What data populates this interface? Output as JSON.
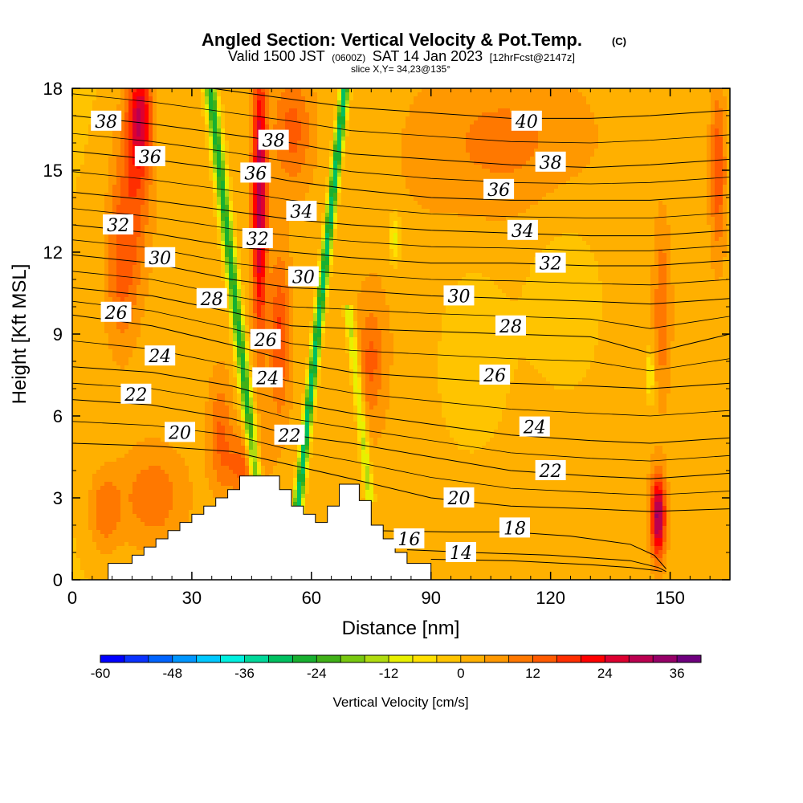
{
  "chart_data": {
    "type": "heatmap",
    "title": "Angled Section: Vertical Velocity & Pot.Temp.",
    "title_mark": "(C)",
    "subtitle": {
      "valid_prefix": "Valid 1500 JST",
      "utc": "(0600Z)",
      "valid_date": "SAT 14 Jan 2023",
      "forecast": "[12hrFcst@2147z]"
    },
    "slice_label": "slice X,Y= 34,23@135°",
    "xlabel": "Distance [nm]",
    "ylabel": "Height [Kft MSL]",
    "xlim": [
      0,
      165
    ],
    "ylim": [
      0,
      18
    ],
    "x_ticks": [
      "0",
      "30",
      "60",
      "90",
      "120",
      "150"
    ],
    "x_tick_values": [
      0,
      30,
      60,
      90,
      120,
      150
    ],
    "y_ticks": [
      "0",
      "3",
      "6",
      "9",
      "12",
      "15",
      "18"
    ],
    "y_tick_values": [
      0,
      3,
      6,
      9,
      12,
      15,
      18
    ],
    "colorbar": {
      "label": "Vertical Velocity [cm/s]",
      "min": -60,
      "max": 40,
      "step": 4,
      "tick_labels": [
        "-60",
        "-48",
        "-36",
        "-24",
        "-12",
        "0",
        "12",
        "24",
        "36"
      ],
      "tick_values": [
        -60,
        -48,
        -36,
        -24,
        -12,
        0,
        12,
        24,
        36
      ],
      "colors": [
        "#0000ff",
        "#0a32ff",
        "#0064ff",
        "#0096ff",
        "#00c8ff",
        "#00f0e0",
        "#00d89a",
        "#00c060",
        "#18b030",
        "#40b018",
        "#78c810",
        "#b0dc10",
        "#e8f000",
        "#ffe000",
        "#ffc400",
        "#ffb000",
        "#ff9800",
        "#ff7800",
        "#ff5a00",
        "#ff2e00",
        "#ff0000",
        "#dd0030",
        "#bb0050",
        "#960068",
        "#6e007e"
      ]
    },
    "terrain": [
      [
        0,
        0
      ],
      [
        9,
        0
      ],
      [
        9,
        0.6
      ],
      [
        15,
        0.6
      ],
      [
        15,
        0.9
      ],
      [
        18,
        0.9
      ],
      [
        18,
        1.2
      ],
      [
        21,
        1.2
      ],
      [
        21,
        1.5
      ],
      [
        24,
        1.5
      ],
      [
        24,
        1.8
      ],
      [
        27,
        1.8
      ],
      [
        27,
        2.1
      ],
      [
        30,
        2.1
      ],
      [
        30,
        2.4
      ],
      [
        33,
        2.4
      ],
      [
        33,
        2.7
      ],
      [
        36,
        2.7
      ],
      [
        36,
        3.0
      ],
      [
        39,
        3.0
      ],
      [
        39,
        3.3
      ],
      [
        42,
        3.3
      ],
      [
        42,
        3.8
      ],
      [
        52,
        3.8
      ],
      [
        52,
        3.3
      ],
      [
        55,
        3.3
      ],
      [
        55,
        2.7
      ],
      [
        58,
        2.7
      ],
      [
        58,
        2.4
      ],
      [
        61,
        2.4
      ],
      [
        61,
        2.1
      ],
      [
        64,
        2.1
      ],
      [
        64,
        2.7
      ],
      [
        67,
        2.7
      ],
      [
        67,
        3.5
      ],
      [
        72,
        3.5
      ],
      [
        72,
        2.9
      ],
      [
        75,
        2.9
      ],
      [
        75,
        2.0
      ],
      [
        78,
        2.0
      ],
      [
        78,
        1.5
      ],
      [
        81,
        1.5
      ],
      [
        81,
        1.0
      ],
      [
        84,
        1.0
      ],
      [
        84,
        0.6
      ],
      [
        90,
        0.6
      ],
      [
        90,
        0
      ],
      [
        165,
        0
      ]
    ],
    "velocity_features": [
      {
        "x": 47,
        "y": 14,
        "sx": 1.8,
        "sy": 5,
        "v": 30
      },
      {
        "x": 17,
        "y": 17,
        "sx": 3,
        "sy": 2,
        "v": 24
      },
      {
        "x": 15,
        "y": 14,
        "sx": 5,
        "sy": 3.5,
        "v": 12
      },
      {
        "x": 12,
        "y": 11,
        "sx": 4,
        "sy": 3,
        "v": 9
      },
      {
        "x": 20,
        "y": 3,
        "sx": 9,
        "sy": 2,
        "v": 10
      },
      {
        "x": 8,
        "y": 2.5,
        "sx": 4,
        "sy": 1.5,
        "v": 10
      },
      {
        "x": 43,
        "y": 4.2,
        "sx": 5,
        "sy": 1.2,
        "v": 12
      },
      {
        "x": 37,
        "y": 5.5,
        "sx": 3,
        "sy": 2,
        "v": 10
      },
      {
        "x": 55,
        "y": 16.5,
        "sx": 5,
        "sy": 2,
        "v": 12
      },
      {
        "x": 52,
        "y": 9,
        "sx": 2.5,
        "sy": 3,
        "v": 14
      },
      {
        "x": 147,
        "y": 2.3,
        "sx": 1.8,
        "sy": 1.5,
        "v": 32
      },
      {
        "x": 162,
        "y": 15,
        "sx": 2,
        "sy": 3,
        "v": 14
      },
      {
        "x": 148,
        "y": 10,
        "sx": 2,
        "sy": 3,
        "v": 10
      },
      {
        "x": 110,
        "y": 16,
        "sx": 20,
        "sy": 2.5,
        "v": 6
      },
      {
        "x": 75,
        "y": 8,
        "sx": 3,
        "sy": 2,
        "v": 10
      },
      {
        "x": 100,
        "y": 8,
        "sx": 10,
        "sy": 4,
        "v": -8
      },
      {
        "x": 123,
        "y": 10,
        "sx": 12,
        "sy": 4,
        "v": -6
      },
      {
        "x": 81,
        "y": 12.5,
        "sx": 1.5,
        "sy": 1,
        "v": -12
      },
      {
        "x": 145,
        "y": 7.5,
        "sx": 1,
        "sy": 1,
        "v": -12
      }
    ],
    "downdrafts": [
      {
        "x0": 57,
        "y0": 3.2,
        "x1": 68,
        "y1": 17.5,
        "w": 1.2,
        "v": -34
      },
      {
        "x0": 46,
        "y0": 3.8,
        "x1": 35,
        "y1": 17.5,
        "w": 1.5,
        "v": -28
      },
      {
        "x0": 74,
        "y0": 3.8,
        "x1": 70,
        "y1": 9,
        "w": 1.2,
        "v": -16
      }
    ],
    "contours": [
      {
        "label": "14",
        "x": [
          90,
          110,
          130,
          140,
          146,
          148
        ],
        "y": [
          0.75,
          0.7,
          0.55,
          0.45,
          0.35,
          0.3
        ]
      },
      {
        "label": "16",
        "x": [
          84,
          100,
          120,
          140,
          147,
          149
        ],
        "y": [
          1.1,
          1.0,
          0.9,
          0.7,
          0.45,
          0.3
        ]
      },
      {
        "label": "18",
        "x": [
          75,
          95,
          110,
          125,
          140,
          146,
          149
        ],
        "y": [
          1.8,
          1.75,
          1.75,
          1.6,
          1.3,
          0.9,
          0.4
        ]
      },
      {
        "label": "20",
        "x": [
          0,
          20,
          40,
          55,
          70,
          90,
          110,
          130,
          145,
          165
        ],
        "y": [
          5.0,
          4.9,
          4.7,
          4.2,
          3.7,
          3.0,
          2.7,
          2.6,
          2.5,
          2.6
        ]
      },
      {
        "label": "22",
        "x": [
          0,
          20,
          40,
          55,
          70,
          90,
          110,
          130,
          145,
          165
        ],
        "y": [
          6.6,
          6.4,
          5.9,
          5.3,
          5.0,
          4.5,
          4.0,
          3.8,
          3.7,
          3.9
        ]
      },
      {
        "label": "24",
        "x": [
          0,
          20,
          40,
          55,
          70,
          90,
          110,
          130,
          145,
          165
        ],
        "y": [
          7.8,
          7.6,
          7.1,
          6.5,
          6.1,
          5.7,
          5.3,
          5.1,
          5.0,
          5.2
        ]
      },
      {
        "label": "26",
        "x": [
          0,
          20,
          40,
          55,
          70,
          90,
          110,
          130,
          145,
          165
        ],
        "y": [
          9.7,
          9.3,
          8.6,
          8.0,
          7.6,
          7.4,
          7.2,
          7.1,
          7.0,
          7.2
        ]
      },
      {
        "label": "28",
        "x": [
          0,
          20,
          40,
          55,
          70,
          90,
          110,
          130,
          145,
          165
        ],
        "y": [
          10.7,
          10.4,
          9.8,
          9.3,
          9.2,
          9.1,
          9.0,
          8.9,
          8.3,
          9.0
        ]
      },
      {
        "label": "30",
        "x": [
          0,
          20,
          40,
          55,
          70,
          90,
          110,
          130,
          145,
          165
        ],
        "y": [
          11.9,
          11.6,
          11.0,
          10.7,
          10.6,
          10.4,
          10.3,
          10.2,
          10.1,
          10.3
        ]
      },
      {
        "label": "32",
        "x": [
          0,
          20,
          40,
          55,
          70,
          90,
          110,
          130,
          145,
          165
        ],
        "y": [
          13.0,
          12.7,
          12.2,
          12.0,
          11.8,
          11.6,
          11.6,
          11.5,
          11.5,
          11.7
        ]
      },
      {
        "label": "34",
        "x": [
          0,
          20,
          40,
          55,
          70,
          90,
          110,
          130,
          145,
          165
        ],
        "y": [
          14.2,
          13.9,
          13.5,
          13.2,
          13.0,
          12.8,
          12.7,
          12.6,
          12.6,
          12.8
        ]
      },
      {
        "label": "36",
        "x": [
          0,
          20,
          40,
          55,
          70,
          90,
          110,
          130,
          145,
          165
        ],
        "y": [
          15.7,
          15.4,
          15.0,
          14.6,
          14.3,
          14.0,
          13.9,
          13.9,
          13.9,
          14.1
        ]
      },
      {
        "label": "38",
        "x": [
          0,
          20,
          40,
          55,
          70,
          90,
          110,
          130,
          145,
          165
        ],
        "y": [
          17.0,
          16.7,
          16.3,
          16.0,
          15.6,
          15.4,
          15.2,
          15.1,
          15.2,
          15.4
        ]
      },
      {
        "label": "40",
        "x": [
          0,
          20,
          40,
          55,
          70,
          90,
          110,
          130,
          145,
          165
        ],
        "y": [
          18.6,
          18.3,
          17.9,
          17.6,
          17.3,
          17.1,
          16.9,
          16.9,
          17.0,
          17.2
        ]
      }
    ],
    "contour_labels": [
      {
        "text": "38",
        "x": 8.5,
        "y": 16.8
      },
      {
        "text": "36",
        "x": 19.5,
        "y": 15.5
      },
      {
        "text": "32",
        "x": 11.5,
        "y": 13.0
      },
      {
        "text": "30",
        "x": 22.0,
        "y": 11.8
      },
      {
        "text": "26",
        "x": 11.0,
        "y": 9.8
      },
      {
        "text": "24",
        "x": 22.0,
        "y": 8.2
      },
      {
        "text": "22",
        "x": 16.0,
        "y": 6.8
      },
      {
        "text": "20",
        "x": 27.0,
        "y": 5.4
      },
      {
        "text": "38",
        "x": 50.5,
        "y": 16.1
      },
      {
        "text": "36",
        "x": 46.0,
        "y": 14.9
      },
      {
        "text": "34",
        "x": 57.5,
        "y": 13.5
      },
      {
        "text": "32",
        "x": 46.5,
        "y": 12.5
      },
      {
        "text": "30",
        "x": 58.0,
        "y": 11.1
      },
      {
        "text": "28",
        "x": 35.0,
        "y": 10.3
      },
      {
        "text": "26",
        "x": 48.5,
        "y": 8.8
      },
      {
        "text": "24",
        "x": 49.0,
        "y": 7.4
      },
      {
        "text": "22",
        "x": 54.5,
        "y": 5.3
      },
      {
        "text": "40",
        "x": 114.0,
        "y": 16.8
      },
      {
        "text": "38",
        "x": 120.0,
        "y": 15.3
      },
      {
        "text": "36",
        "x": 107.0,
        "y": 14.3
      },
      {
        "text": "34",
        "x": 113.0,
        "y": 12.8
      },
      {
        "text": "32",
        "x": 120.0,
        "y": 11.6
      },
      {
        "text": "30",
        "x": 97.0,
        "y": 10.4
      },
      {
        "text": "28",
        "x": 110.0,
        "y": 9.3
      },
      {
        "text": "26",
        "x": 106.0,
        "y": 7.5
      },
      {
        "text": "24",
        "x": 116.0,
        "y": 5.6
      },
      {
        "text": "22",
        "x": 120.0,
        "y": 4.0
      },
      {
        "text": "20",
        "x": 97.0,
        "y": 3.0
      },
      {
        "text": "18",
        "x": 111.0,
        "y": 1.9
      },
      {
        "text": "16",
        "x": 84.5,
        "y": 1.5
      },
      {
        "text": "14",
        "x": 97.5,
        "y": 1.0
      }
    ]
  }
}
